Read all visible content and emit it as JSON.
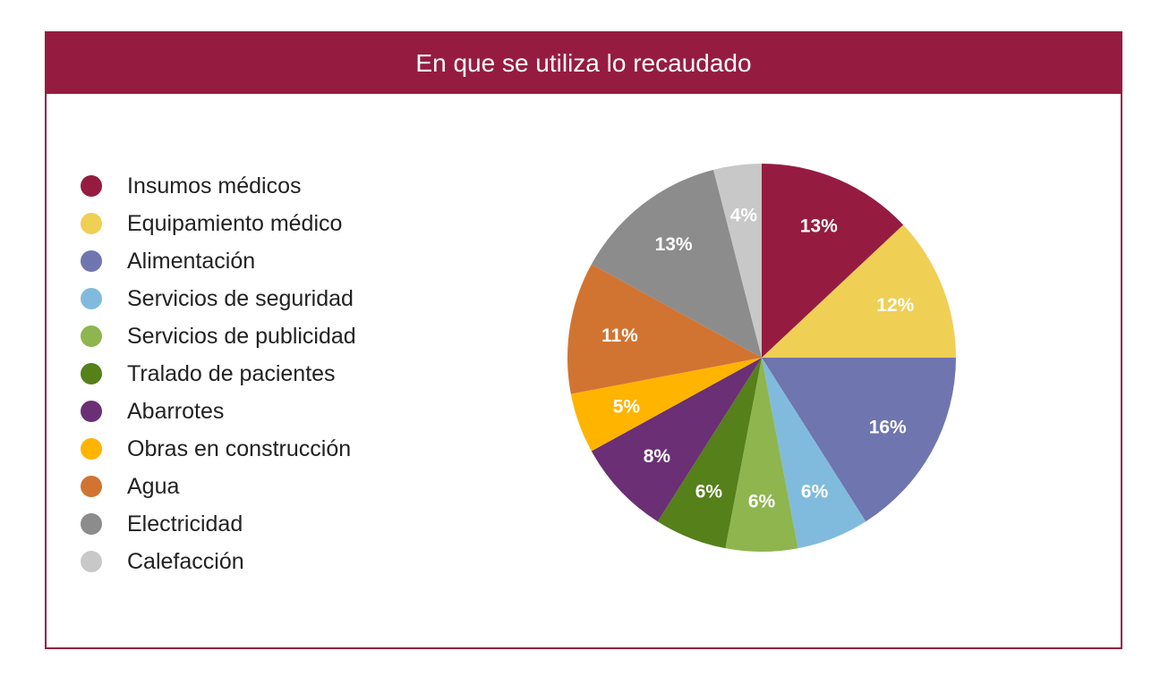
{
  "chart_data": {
    "type": "pie",
    "title": "En que se utiliza lo recaudado",
    "legend_position": "left",
    "slices": [
      {
        "label": "Insumos médicos",
        "value": 13,
        "value_label": "13%",
        "color": "#951c40"
      },
      {
        "label": "Equipamiento médico",
        "value": 12,
        "value_label": "12%",
        "color": "#f0cf55"
      },
      {
        "label": "Alimentación",
        "value": 16,
        "value_label": "16%",
        "color": "#6f75ae"
      },
      {
        "label": "Servicios de seguridad",
        "value": 6,
        "value_label": "6%",
        "color": "#80bbdd"
      },
      {
        "label": "Servicios de publicidad",
        "value": 6,
        "value_label": "6%",
        "color": "#8fb54f"
      },
      {
        "label": "Tralado de pacientes",
        "value": 6,
        "value_label": "6%",
        "color": "#55801a"
      },
      {
        "label": "Abarrotes",
        "value": 8,
        "value_label": "8%",
        "color": "#6a2f74"
      },
      {
        "label": "Obras en construcción",
        "value": 5,
        "value_label": "5%",
        "color": "#ffb400"
      },
      {
        "label": "Agua",
        "value": 11,
        "value_label": "11%",
        "color": "#d17431"
      },
      {
        "label": "Electricidad",
        "value": 13,
        "value_label": "13%",
        "color": "#8c8c8c"
      },
      {
        "label": "Calefacción",
        "value": 4,
        "value_label": "4%",
        "color": "#c8c8c8"
      }
    ]
  }
}
